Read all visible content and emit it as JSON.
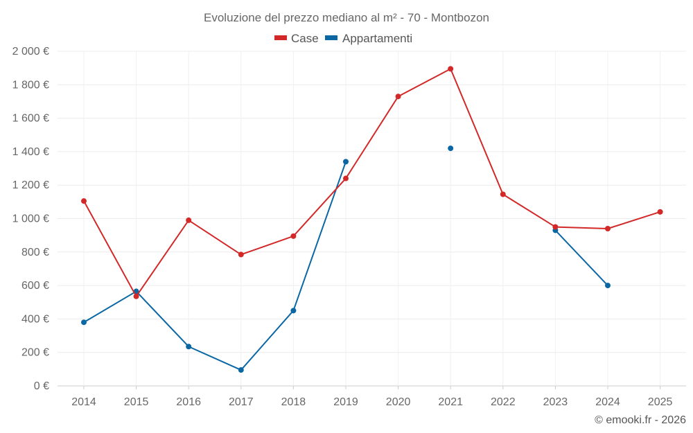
{
  "chart_data": {
    "type": "line",
    "title": "Evoluzione del prezzo mediano al m² - 70 - Montbozon",
    "categories": [
      "2014",
      "2015",
      "2016",
      "2017",
      "2018",
      "2019",
      "2020",
      "2021",
      "2022",
      "2023",
      "2024",
      "2025"
    ],
    "series": [
      {
        "name": "Case",
        "color": "#d32828",
        "values": [
          1105,
          535,
          990,
          785,
          895,
          1240,
          1730,
          1895,
          1145,
          950,
          940,
          1040
        ]
      },
      {
        "name": "Appartamenti",
        "color": "#0a67a3",
        "values": [
          380,
          565,
          235,
          95,
          450,
          1340,
          null,
          1420,
          null,
          930,
          600,
          null
        ]
      }
    ],
    "ylim": [
      0,
      2000
    ],
    "yticks": [
      0,
      200,
      400,
      600,
      800,
      1000,
      1200,
      1400,
      1600,
      1800,
      2000
    ],
    "ytick_labels": [
      "0 €",
      "200 €",
      "400 €",
      "600 €",
      "800 €",
      "1 000 €",
      "1 200 €",
      "1 400 €",
      "1 600 €",
      "1 800 €",
      "2 000 €"
    ],
    "xlabel": "",
    "ylabel": "",
    "grid": true,
    "legend_position": "top-center",
    "footer": "© emooki.fr - 2026"
  }
}
